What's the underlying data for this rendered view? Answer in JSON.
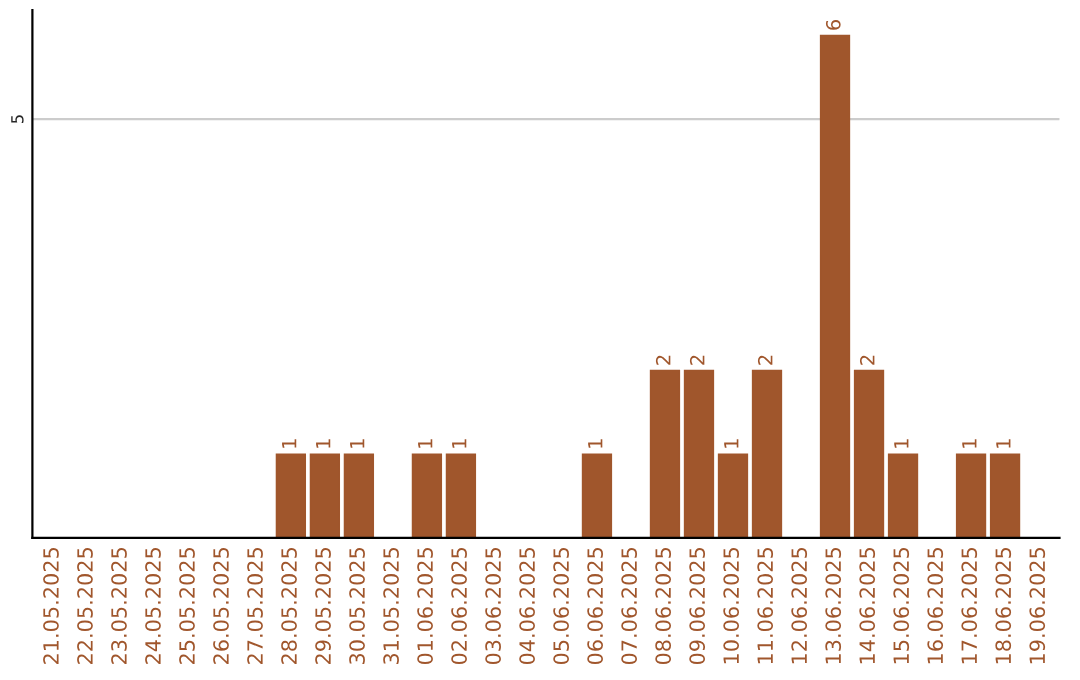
{
  "chart_data": {
    "type": "bar",
    "categories": [
      "21.05.2025",
      "22.05.2025",
      "23.05.2025",
      "24.05.2025",
      "25.05.2025",
      "26.05.2025",
      "27.05.2025",
      "28.05.2025",
      "29.05.2025",
      "30.05.2025",
      "31.05.2025",
      "01.06.2025",
      "02.06.2025",
      "03.06.2025",
      "04.06.2025",
      "05.06.2025",
      "06.06.2025",
      "07.06.2025",
      "08.06.2025",
      "09.06.2025",
      "10.06.2025",
      "11.06.2025",
      "12.06.2025",
      "13.06.2025",
      "14.06.2025",
      "15.06.2025",
      "16.06.2025",
      "17.06.2025",
      "18.06.2025",
      "19.06.2025"
    ],
    "values": [
      0,
      0,
      0,
      0,
      0,
      0,
      0,
      1,
      1,
      1,
      0,
      1,
      1,
      0,
      0,
      0,
      1,
      0,
      2,
      2,
      1,
      2,
      0,
      6,
      2,
      1,
      0,
      1,
      1,
      0
    ],
    "value_labels": [
      null,
      null,
      null,
      null,
      null,
      null,
      null,
      "1",
      "1",
      "1",
      null,
      "1",
      "1",
      null,
      null,
      null,
      "1",
      null,
      "2",
      "2",
      "1",
      "2",
      null,
      "6",
      "2",
      "1",
      null,
      "1",
      "1",
      null
    ],
    "color": "#a0562c",
    "ylim": [
      0,
      6.3
    ],
    "yticks": [
      5
    ],
    "grid": "y"
  }
}
